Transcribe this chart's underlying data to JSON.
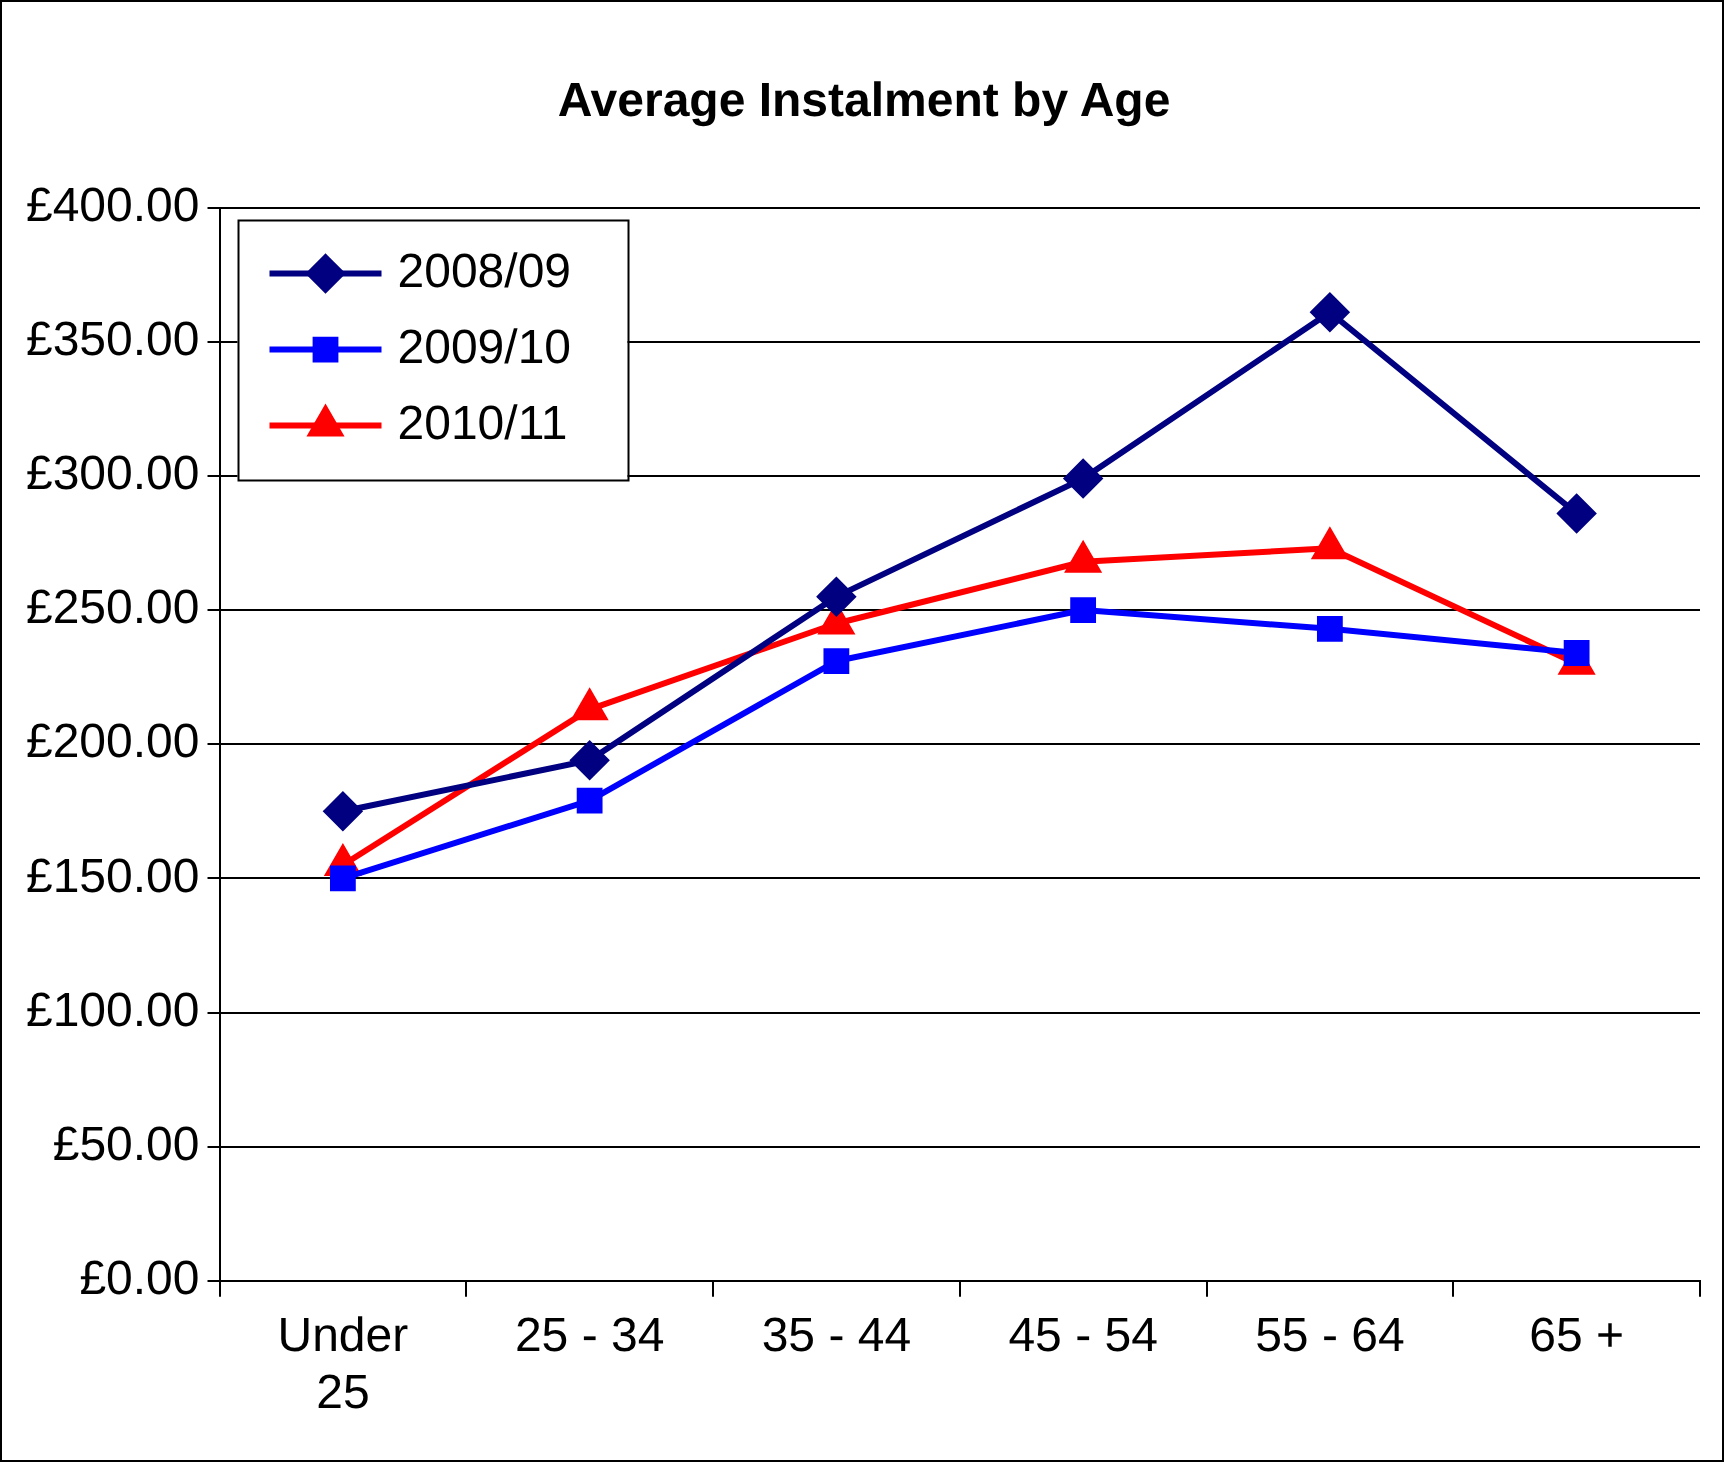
{
  "chart_data": {
    "type": "line",
    "title": "Average Instalment by Age",
    "categories": [
      "Under 25",
      "25 - 34",
      "35 - 44",
      "45 - 54",
      "55 - 64",
      "65 +"
    ],
    "series": [
      {
        "name": "2008/09",
        "color": "#000080",
        "marker": "diamond",
        "values": [
          175,
          194,
          255,
          299,
          361,
          286
        ]
      },
      {
        "name": "2009/10",
        "color": "#0000ff",
        "marker": "square",
        "values": [
          150,
          179,
          231,
          250,
          243,
          234
        ]
      },
      {
        "name": "2010/11",
        "color": "#ff0000",
        "marker": "triangle",
        "values": [
          155,
          213,
          245,
          268,
          273,
          230
        ]
      }
    ],
    "ylim": [
      0,
      400
    ],
    "yticks": [
      {
        "value": 0,
        "label": "£0.00"
      },
      {
        "value": 50,
        "label": "£50.00"
      },
      {
        "value": 100,
        "label": "£100.00"
      },
      {
        "value": 150,
        "label": "£150.00"
      },
      {
        "value": 200,
        "label": "£200.00"
      },
      {
        "value": 250,
        "label": "£250.00"
      },
      {
        "value": 300,
        "label": "£300.00"
      },
      {
        "value": 350,
        "label": "£350.00"
      },
      {
        "value": 400,
        "label": "£400.00"
      }
    ],
    "grid": "y",
    "legend": "top left",
    "line_style": "solid"
  }
}
